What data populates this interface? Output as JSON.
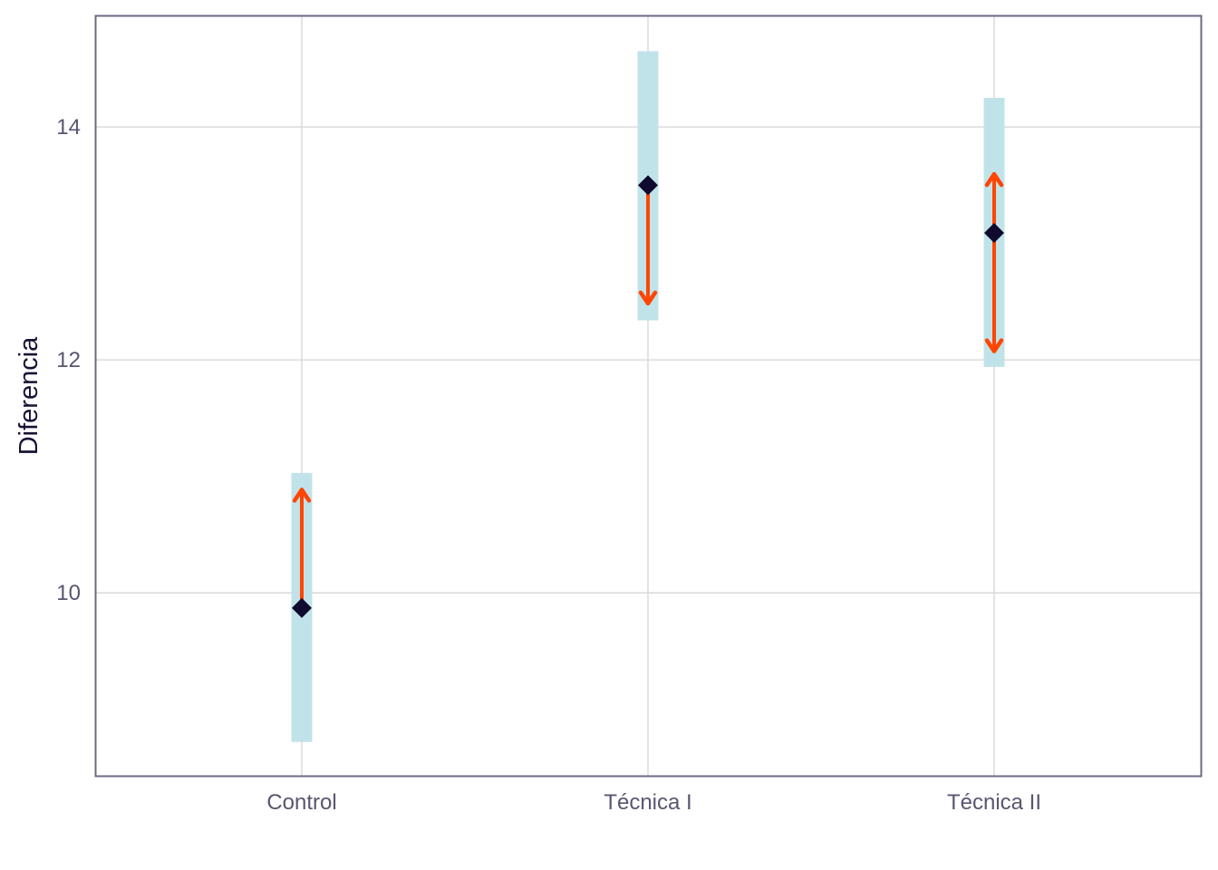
{
  "chart_data": {
    "type": "interval",
    "title": "",
    "xlabel": "",
    "ylabel": "Diferencia",
    "ylim": [
      8.43,
      14.95
    ],
    "yticks": [
      10,
      12,
      14
    ],
    "grid": true,
    "categories": [
      "Control",
      "Técnica I",
      "Técnica II"
    ],
    "intervals": [
      {
        "category": "Control",
        "low": 8.72,
        "high": 11.03
      },
      {
        "category": "Técnica I",
        "low": 12.34,
        "high": 14.65
      },
      {
        "category": "Técnica II",
        "low": 11.94,
        "high": 14.25
      }
    ],
    "points": [
      {
        "category": "Control",
        "value": 9.87
      },
      {
        "category": "Técnica I",
        "value": 13.5
      },
      {
        "category": "Técnica II",
        "value": 13.09
      }
    ],
    "arrows": [
      {
        "category": "Control",
        "from": 9.87,
        "to": 10.87
      },
      {
        "category": "Técnica I",
        "from": 13.5,
        "to": 12.5
      },
      {
        "category": "Técnica II",
        "from": 13.09,
        "to": 13.58
      },
      {
        "category": "Técnica II",
        "from": 13.09,
        "to": 12.09
      }
    ],
    "colors": {
      "interval": "#c0e3e9",
      "point": "#0f0a2e",
      "arrow": "#ff4500",
      "grid": "#d6d6d6",
      "panel_border": "#6e6a86"
    }
  }
}
